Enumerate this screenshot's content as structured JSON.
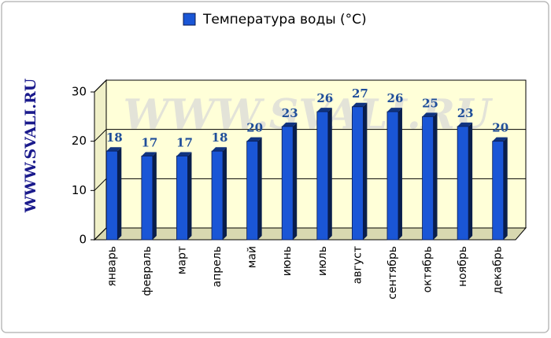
{
  "chart_data": {
    "type": "bar",
    "side_label": "WWW.SVALI.RU",
    "watermark": "WWW.SVALI.RU",
    "categories": [
      "январь",
      "февраль",
      "март",
      "апрель",
      "май",
      "июнь",
      "июль",
      "август",
      "сентябрь",
      "октябрь",
      "ноябрь",
      "декабрь"
    ],
    "series": [
      {
        "name": "Температура воды (°C)",
        "color": "#1a56d6",
        "values": [
          18,
          17,
          17,
          18,
          20,
          23,
          26,
          27,
          26,
          25,
          23,
          20
        ]
      }
    ],
    "ylim": [
      0,
      30
    ],
    "yticks": [
      0,
      10,
      20,
      30
    ],
    "grid": true,
    "legend": "top"
  }
}
